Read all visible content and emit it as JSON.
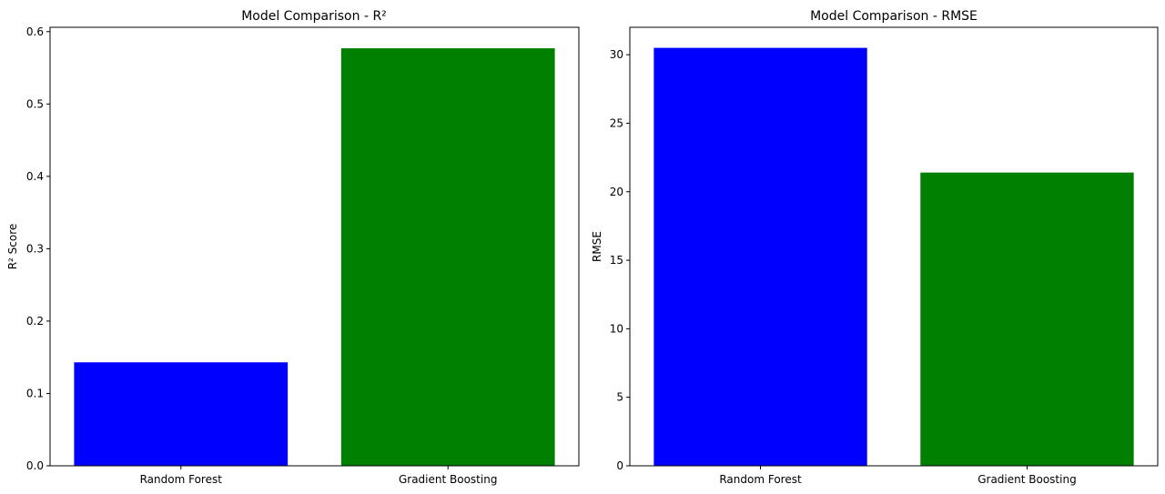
{
  "chart_data": [
    {
      "type": "bar",
      "title": "Model Comparison - R²",
      "xlabel": "",
      "ylabel": "R² Score",
      "categories": [
        "Random Forest",
        "Gradient Boosting"
      ],
      "values": [
        0.143,
        0.577
      ],
      "colors": [
        "#0000ff",
        "#008000"
      ],
      "ylim": [
        0,
        0.606
      ],
      "yticks": [
        0.0,
        0.1,
        0.2,
        0.3,
        0.4,
        0.5,
        0.6
      ],
      "ytick_labels": [
        "0.0",
        "0.1",
        "0.2",
        "0.3",
        "0.4",
        "0.5",
        "0.6"
      ],
      "grid": false
    },
    {
      "type": "bar",
      "title": "Model Comparison - RMSE",
      "xlabel": "",
      "ylabel": "RMSE",
      "categories": [
        "Random Forest",
        "Gradient Boosting"
      ],
      "values": [
        30.5,
        21.4
      ],
      "colors": [
        "#0000ff",
        "#008000"
      ],
      "ylim": [
        0,
        32.0
      ],
      "yticks": [
        0,
        5,
        10,
        15,
        20,
        25,
        30
      ],
      "ytick_labels": [
        "0",
        "5",
        "10",
        "15",
        "20",
        "25",
        "30"
      ],
      "grid": false
    }
  ]
}
